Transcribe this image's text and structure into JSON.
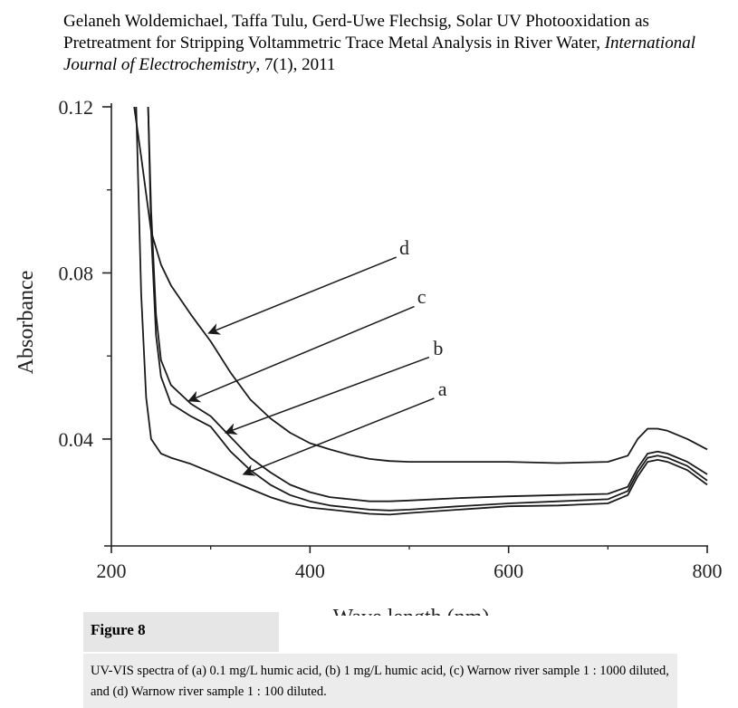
{
  "citation": {
    "authors_title": "Gelaneh Woldemichael, Taffa Tulu, Gerd-Uwe Flechsig, Solar UV Photooxidation as Pretreatment for Stripping Voltammetric Trace Metal Analysis in River Water, ",
    "journal": "International Journal of Electrochemistry",
    "volume": ", 7(1), 2011"
  },
  "chart_data": {
    "type": "line",
    "title": "",
    "xlabel": "Wave length (nm)",
    "ylabel": "Absorbance",
    "xlim": [
      200,
      800
    ],
    "ylim": [
      0.016,
      0.12
    ],
    "xticks": [
      200,
      400,
      600,
      800
    ],
    "xtick_labels": [
      "200",
      "400",
      "600",
      "800"
    ],
    "yticks": [
      0.04,
      0.08,
      0.12
    ],
    "ytick_labels": [
      "0.04",
      "0.08",
      "0.12"
    ],
    "grid": false,
    "legend": "none (curves labelled a–d with arrows)",
    "line_color": "#1a1a1a",
    "series": [
      {
        "name": "a",
        "x": [
          225,
          230,
          235,
          240,
          250,
          260,
          280,
          300,
          320,
          340,
          360,
          380,
          400,
          420,
          440,
          460,
          480,
          500,
          550,
          600,
          650,
          700,
          720,
          730,
          740,
          750,
          760,
          780,
          800
        ],
        "y": [
          0.12,
          0.075,
          0.05,
          0.04,
          0.0365,
          0.0355,
          0.034,
          0.032,
          0.03,
          0.028,
          0.026,
          0.0245,
          0.0235,
          0.023,
          0.0225,
          0.022,
          0.0218,
          0.0222,
          0.023,
          0.0238,
          0.024,
          0.0245,
          0.0265,
          0.031,
          0.0345,
          0.035,
          0.0345,
          0.0325,
          0.029
        ]
      },
      {
        "name": "b",
        "x": [
          237,
          240,
          245,
          250,
          260,
          280,
          300,
          320,
          340,
          360,
          380,
          400,
          420,
          440,
          460,
          480,
          500,
          550,
          600,
          650,
          700,
          720,
          730,
          740,
          750,
          760,
          780,
          800
        ],
        "y": [
          0.12,
          0.09,
          0.065,
          0.055,
          0.0485,
          0.0455,
          0.043,
          0.037,
          0.0325,
          0.029,
          0.0265,
          0.025,
          0.024,
          0.0235,
          0.023,
          0.0228,
          0.023,
          0.0238,
          0.0245,
          0.025,
          0.0255,
          0.0275,
          0.032,
          0.0355,
          0.036,
          0.0355,
          0.0335,
          0.03
        ]
      },
      {
        "name": "c",
        "x": [
          237,
          240,
          245,
          250,
          260,
          280,
          300,
          320,
          340,
          360,
          380,
          400,
          420,
          440,
          460,
          480,
          500,
          550,
          600,
          650,
          700,
          720,
          730,
          740,
          750,
          760,
          780,
          800
        ],
        "y": [
          0.12,
          0.095,
          0.07,
          0.059,
          0.053,
          0.0485,
          0.0455,
          0.0405,
          0.0355,
          0.032,
          0.029,
          0.0272,
          0.026,
          0.0255,
          0.025,
          0.025,
          0.0252,
          0.0258,
          0.0262,
          0.0265,
          0.0268,
          0.0285,
          0.033,
          0.0365,
          0.037,
          0.0365,
          0.0345,
          0.0315
        ]
      },
      {
        "name": "d",
        "x": [
          223,
          230,
          240,
          250,
          260,
          280,
          300,
          320,
          340,
          360,
          380,
          400,
          420,
          440,
          460,
          480,
          500,
          550,
          600,
          650,
          700,
          720,
          730,
          740,
          750,
          760,
          780,
          800
        ],
        "y": [
          0.12,
          0.108,
          0.09,
          0.082,
          0.077,
          0.07,
          0.0635,
          0.056,
          0.0495,
          0.045,
          0.0415,
          0.039,
          0.0375,
          0.0362,
          0.0352,
          0.0347,
          0.0345,
          0.0345,
          0.0345,
          0.0342,
          0.0345,
          0.036,
          0.04,
          0.0425,
          0.0425,
          0.042,
          0.04,
          0.0375
        ]
      }
    ],
    "annotations": [
      {
        "label": "d",
        "text_x": 490,
        "text_y": 0.0845,
        "arrow_from": [
          487,
          0.0838
        ],
        "arrow_to": [
          298,
          0.0655
        ]
      },
      {
        "label": "c",
        "text_x": 508,
        "text_y": 0.0727,
        "arrow_from": [
          505,
          0.0719
        ],
        "arrow_to": [
          278,
          0.0492
        ]
      },
      {
        "label": "b",
        "text_x": 524,
        "text_y": 0.0603,
        "arrow_from": [
          520,
          0.0597
        ],
        "arrow_to": [
          315,
          0.0415
        ]
      },
      {
        "label": "a",
        "text_x": 529,
        "text_y": 0.0505,
        "arrow_from": [
          525,
          0.0498
        ],
        "arrow_to": [
          333,
          0.0315
        ]
      }
    ]
  },
  "caption": {
    "title": "Figure 8",
    "text": "UV-VIS spectra of (a) 0.1 mg/L humic acid, (b) 1 mg/L humic acid, (c) Warnow river sample 1 : 1000 diluted, and (d) Warnow river sample 1 : 100 diluted."
  }
}
